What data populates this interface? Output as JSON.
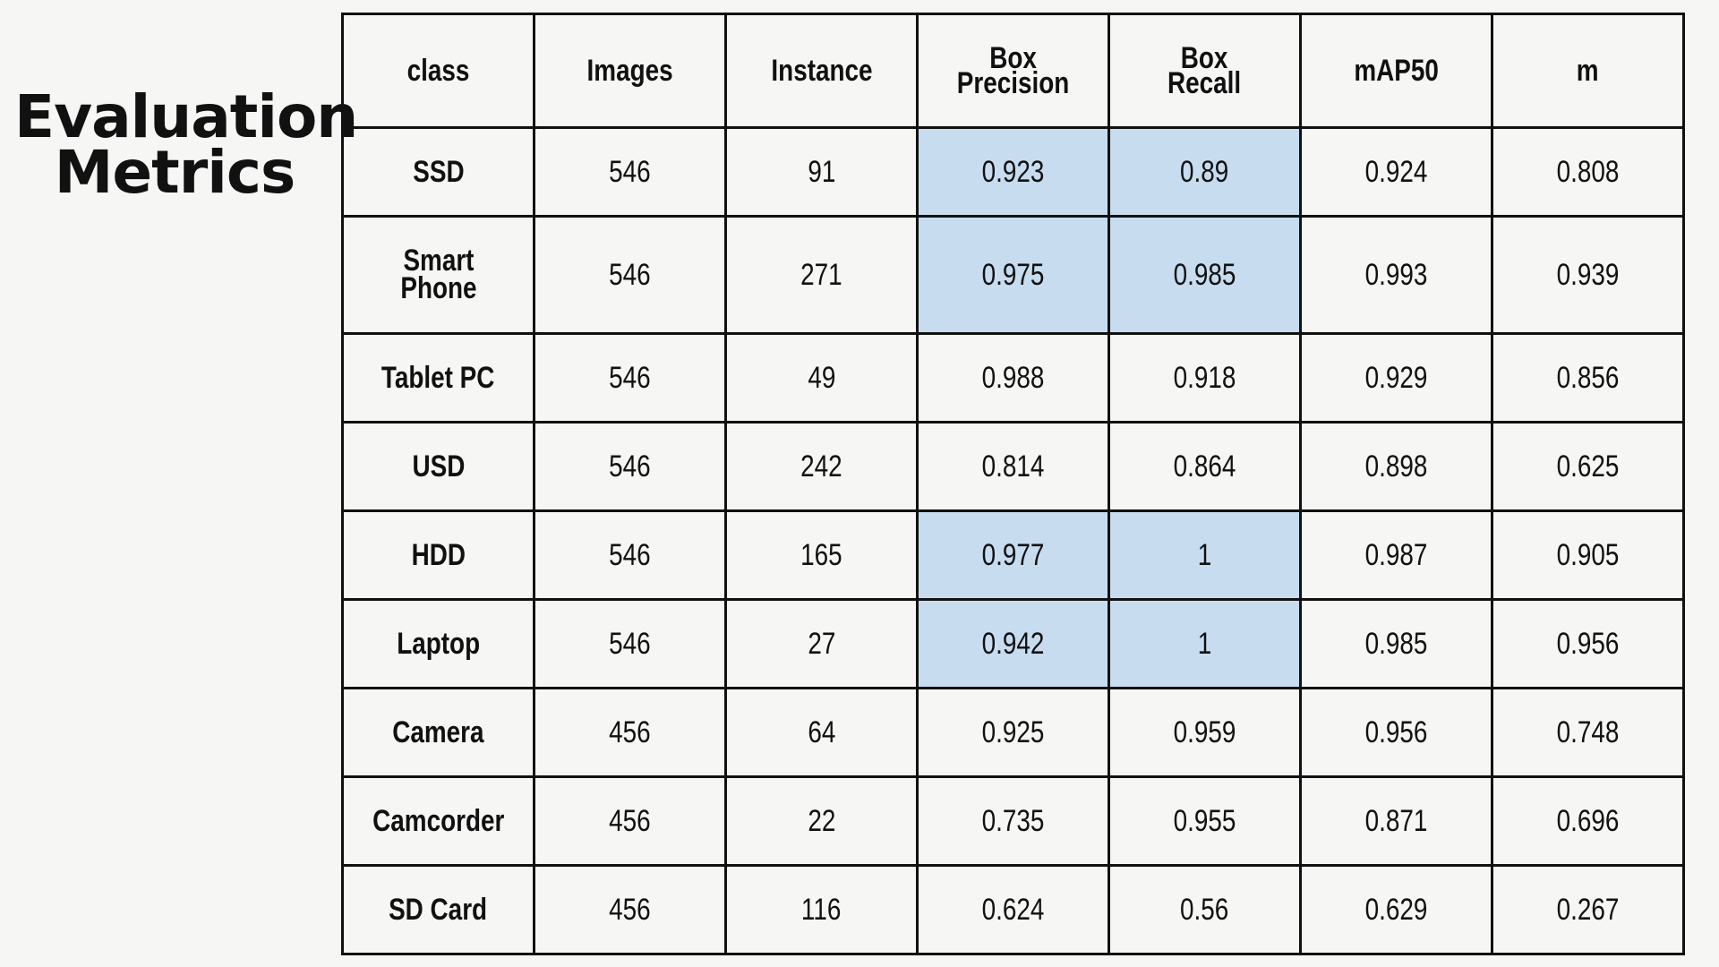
{
  "title": {
    "line1": "Evaluation",
    "line2": "Metrics"
  },
  "table": {
    "headers": [
      "class",
      "Images",
      "Instance",
      "Box\nPrecision",
      "Box\nRecall",
      "mAP50",
      "m"
    ],
    "rows": [
      {
        "cells": [
          "SSD",
          "546",
          "91",
          "0.923",
          "0.89",
          "0.924",
          "0.808"
        ],
        "highlight": [
          3,
          4
        ]
      },
      {
        "cells": [
          "Smart\nPhone",
          "546",
          "271",
          "0.975",
          "0.985",
          "0.993",
          "0.939"
        ],
        "highlight": [
          3,
          4
        ]
      },
      {
        "cells": [
          "Tablet PC",
          "546",
          "49",
          "0.988",
          "0.918",
          "0.929",
          "0.856"
        ],
        "highlight": []
      },
      {
        "cells": [
          "USD",
          "546",
          "242",
          "0.814",
          "0.864",
          "0.898",
          "0.625"
        ],
        "highlight": []
      },
      {
        "cells": [
          "HDD",
          "546",
          "165",
          "0.977",
          "1",
          "0.987",
          "0.905"
        ],
        "highlight": [
          3,
          4
        ]
      },
      {
        "cells": [
          "Laptop",
          "546",
          "27",
          "0.942",
          "1",
          "0.985",
          "0.956"
        ],
        "highlight": [
          3,
          4
        ]
      },
      {
        "cells": [
          "Camera",
          "456",
          "64",
          "0.925",
          "0.959",
          "0.956",
          "0.748"
        ],
        "highlight": []
      },
      {
        "cells": [
          "Camcorder",
          "456",
          "22",
          "0.735",
          "0.955",
          "0.871",
          "0.696"
        ],
        "highlight": []
      },
      {
        "cells": [
          "SD Card",
          "456",
          "116",
          "0.624",
          "0.56",
          "0.629",
          "0.267"
        ],
        "highlight": []
      }
    ]
  },
  "colors": {
    "highlight": "#c7dcef",
    "border": "#111111",
    "background": "#f6f6f4"
  }
}
